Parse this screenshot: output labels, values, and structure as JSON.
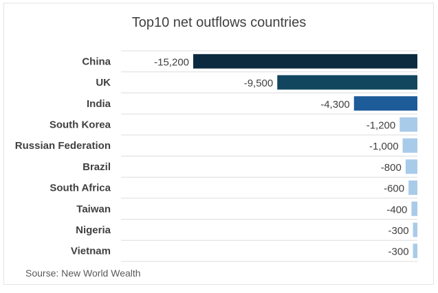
{
  "chart_data": {
    "type": "bar",
    "orientation": "horizontal",
    "title": "Top10 net outflows countries",
    "categories": [
      "China",
      "UK",
      "India",
      "South Korea",
      "Russian Federation",
      "Brazil",
      "South Africa",
      "Taiwan",
      "Nigeria",
      "Vietnam"
    ],
    "values": [
      -15200,
      -9500,
      -4300,
      -1200,
      -1000,
      -800,
      -600,
      -400,
      -300,
      -300
    ],
    "data_labels": [
      "-15,200",
      "-9,500",
      "-4,300",
      "-1,200",
      "-1,000",
      "-800",
      "-600",
      "-400",
      "-300",
      "-300"
    ],
    "xlim": [
      -15200,
      0
    ],
    "grid": true,
    "bar_colors": [
      "#0c2a3f",
      "#11465e",
      "#1e5b99",
      "#a9cbea",
      "#a9cbea",
      "#a9cbea",
      "#a9cbea",
      "#a9cbea",
      "#a9cbea",
      "#a9cbea"
    ],
    "gridline_color": "#dcdcdc",
    "source": "Sourse: New World Wealth"
  }
}
